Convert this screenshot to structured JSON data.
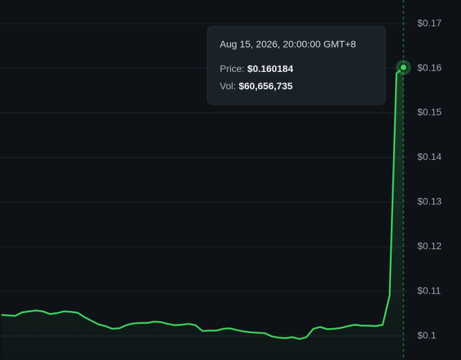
{
  "chart_data": {
    "type": "line",
    "color": "#3fcf5e",
    "ylim": [
      0.0946,
      0.1753
    ],
    "yticks": [
      {
        "value": 0.1,
        "label": "$0.1"
      },
      {
        "value": 0.11,
        "label": "$0.11"
      },
      {
        "value": 0.12,
        "label": "$0.12"
      },
      {
        "value": 0.13,
        "label": "$0.13"
      },
      {
        "value": 0.14,
        "label": "$0.14"
      },
      {
        "value": 0.15,
        "label": "$0.15"
      },
      {
        "value": 0.16,
        "label": "$0.16"
      },
      {
        "value": 0.17,
        "label": "$0.17"
      }
    ],
    "grid": true,
    "values": [
      0.1047,
      0.1046,
      0.1045,
      0.1053,
      0.1055,
      0.1057,
      0.1055,
      0.1049,
      0.1051,
      0.1055,
      0.1054,
      0.1052,
      0.1042,
      0.1034,
      0.1026,
      0.1022,
      0.1016,
      0.1017,
      0.1024,
      0.1028,
      0.1029,
      0.1029,
      0.1032,
      0.1031,
      0.1027,
      0.1024,
      0.1025,
      0.1027,
      0.1024,
      0.1011,
      0.1012,
      0.1012,
      0.1016,
      0.1017,
      0.1013,
      0.101,
      0.1008,
      0.1007,
      0.1006,
      0.0999,
      0.0996,
      0.0995,
      0.0997,
      0.0993,
      0.0997,
      0.1016,
      0.102,
      0.1015,
      0.1016,
      0.1018,
      0.1022,
      0.1025,
      0.1023,
      0.1023,
      0.1022,
      0.1025,
      0.109,
      0.1589,
      0.160184
    ],
    "tooltip": {
      "date": "Aug 15, 2026, 20:00:00 GMT+8",
      "price_label": "Price:",
      "price": "$0.160184",
      "vol_label": "Vol:",
      "vol": "$60,656,735"
    }
  }
}
